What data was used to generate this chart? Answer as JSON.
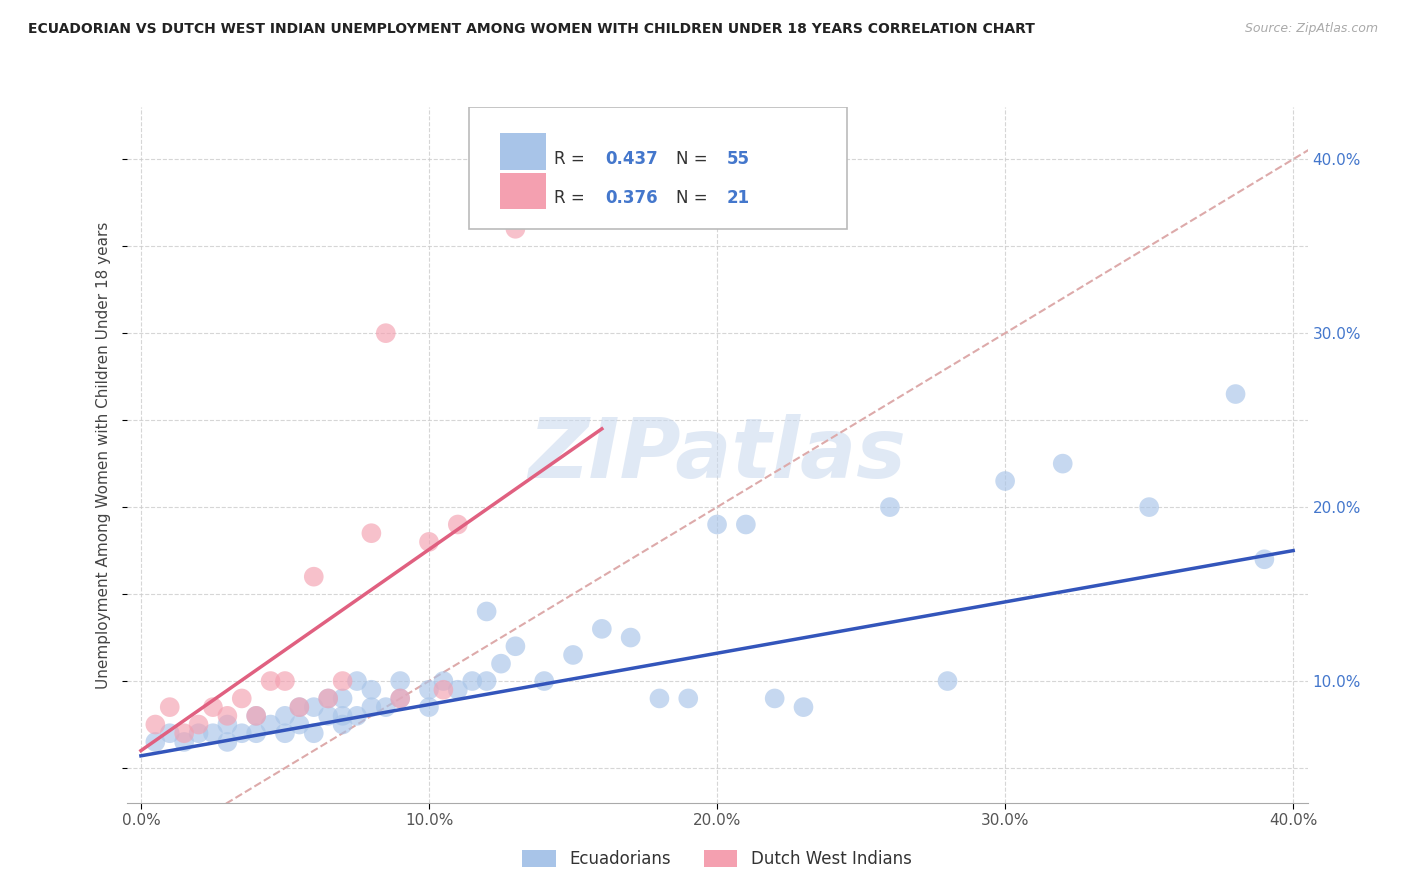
{
  "title": "ECUADORIAN VS DUTCH WEST INDIAN UNEMPLOYMENT AMONG WOMEN WITH CHILDREN UNDER 18 YEARS CORRELATION CHART",
  "source": "Source: ZipAtlas.com",
  "ylabel": "Unemployment Among Women with Children Under 18 years",
  "xlim": [
    -0.005,
    0.405
  ],
  "ylim": [
    0.03,
    0.43
  ],
  "xticks": [
    0.0,
    0.1,
    0.2,
    0.3,
    0.4
  ],
  "xtick_labels": [
    "0.0%",
    "10.0%",
    "20.0%",
    "30.0%",
    "40.0%"
  ],
  "ytick_labels_right": [
    "10.0%",
    "20.0%",
    "30.0%",
    "40.0%"
  ],
  "yticks_right": [
    0.1,
    0.2,
    0.3,
    0.4
  ],
  "blue_R": "0.437",
  "blue_N": "55",
  "pink_R": "0.376",
  "pink_N": "21",
  "blue_color": "#A8C4E8",
  "pink_color": "#F4A0B0",
  "blue_line_color": "#3355BB",
  "pink_line_color": "#E06080",
  "diagonal_line_color": "#DDAAAA",
  "watermark_text": "ZIPatlas",
  "legend_label_blue": "Ecuadorians",
  "legend_label_pink": "Dutch West Indians",
  "blue_scatter_x": [
    0.005,
    0.01,
    0.015,
    0.02,
    0.025,
    0.03,
    0.03,
    0.035,
    0.04,
    0.04,
    0.045,
    0.05,
    0.05,
    0.055,
    0.055,
    0.06,
    0.06,
    0.065,
    0.065,
    0.07,
    0.07,
    0.07,
    0.075,
    0.075,
    0.08,
    0.08,
    0.085,
    0.09,
    0.09,
    0.1,
    0.1,
    0.105,
    0.11,
    0.115,
    0.12,
    0.12,
    0.125,
    0.13,
    0.14,
    0.15,
    0.16,
    0.17,
    0.18,
    0.19,
    0.2,
    0.21,
    0.22,
    0.23,
    0.26,
    0.28,
    0.3,
    0.32,
    0.35,
    0.38,
    0.39
  ],
  "blue_scatter_y": [
    0.065,
    0.07,
    0.065,
    0.07,
    0.07,
    0.065,
    0.075,
    0.07,
    0.07,
    0.08,
    0.075,
    0.07,
    0.08,
    0.075,
    0.085,
    0.07,
    0.085,
    0.08,
    0.09,
    0.075,
    0.08,
    0.09,
    0.08,
    0.1,
    0.085,
    0.095,
    0.085,
    0.09,
    0.1,
    0.085,
    0.095,
    0.1,
    0.095,
    0.1,
    0.1,
    0.14,
    0.11,
    0.12,
    0.1,
    0.115,
    0.13,
    0.125,
    0.09,
    0.09,
    0.19,
    0.19,
    0.09,
    0.085,
    0.2,
    0.1,
    0.215,
    0.225,
    0.2,
    0.265,
    0.17
  ],
  "pink_scatter_x": [
    0.005,
    0.01,
    0.015,
    0.02,
    0.025,
    0.03,
    0.035,
    0.04,
    0.045,
    0.05,
    0.055,
    0.06,
    0.065,
    0.07,
    0.08,
    0.085,
    0.09,
    0.1,
    0.105,
    0.11,
    0.13
  ],
  "pink_scatter_y": [
    0.075,
    0.085,
    0.07,
    0.075,
    0.085,
    0.08,
    0.09,
    0.08,
    0.1,
    0.1,
    0.085,
    0.16,
    0.09,
    0.1,
    0.185,
    0.3,
    0.09,
    0.18,
    0.095,
    0.19,
    0.36
  ],
  "background_color": "#FFFFFF",
  "grid_color": "#CCCCCC",
  "blue_line_x": [
    0.0,
    0.4
  ],
  "blue_line_y": [
    0.057,
    0.175
  ],
  "pink_line_x": [
    0.0,
    0.16
  ],
  "pink_line_y": [
    0.06,
    0.245
  ]
}
